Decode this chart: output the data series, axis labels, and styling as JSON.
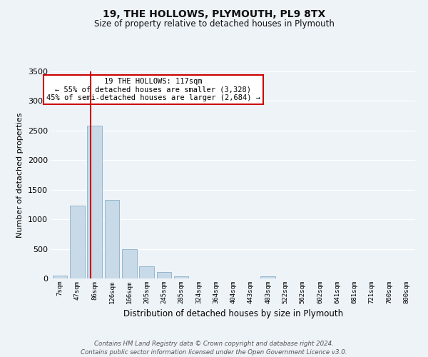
{
  "title": "19, THE HOLLOWS, PLYMOUTH, PL9 8TX",
  "subtitle": "Size of property relative to detached houses in Plymouth",
  "xlabel": "Distribution of detached houses by size in Plymouth",
  "ylabel": "Number of detached properties",
  "bin_labels": [
    "7sqm",
    "47sqm",
    "86sqm",
    "126sqm",
    "166sqm",
    "205sqm",
    "245sqm",
    "285sqm",
    "324sqm",
    "364sqm",
    "404sqm",
    "443sqm",
    "483sqm",
    "522sqm",
    "562sqm",
    "602sqm",
    "641sqm",
    "681sqm",
    "721sqm",
    "760sqm",
    "800sqm"
  ],
  "bar_heights": [
    50,
    1230,
    2580,
    1330,
    500,
    200,
    105,
    40,
    0,
    0,
    0,
    0,
    40,
    0,
    0,
    0,
    0,
    0,
    0,
    0,
    0
  ],
  "bar_color": "#c8d9e8",
  "bar_edgecolor": "#8ab0c8",
  "vline_color": "#cc0000",
  "ylim": [
    0,
    3500
  ],
  "yticks": [
    0,
    500,
    1000,
    1500,
    2000,
    2500,
    3000,
    3500
  ],
  "annotation_text": "19 THE HOLLOWS: 117sqm\n← 55% of detached houses are smaller (3,328)\n45% of semi-detached houses are larger (2,684) →",
  "annotation_box_facecolor": "#ffffff",
  "annotation_box_edgecolor": "#cc0000",
  "footer_line1": "Contains HM Land Registry data © Crown copyright and database right 2024.",
  "footer_line2": "Contains public sector information licensed under the Open Government Licence v3.0.",
  "bg_color": "#eef3f8",
  "grid_color": "#ffffff",
  "vline_pos": 1.78
}
